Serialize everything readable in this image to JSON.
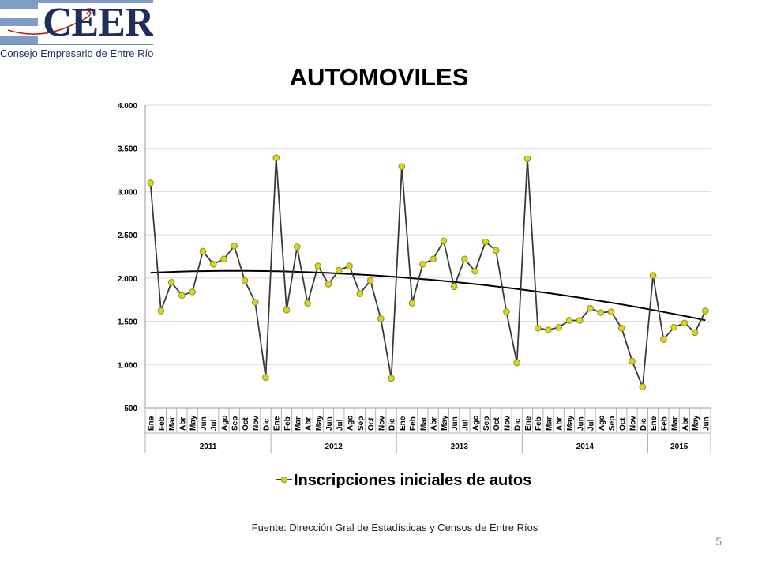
{
  "header": {
    "logo_text": "CEER",
    "logo_subtitle": "Consejo Empresario de Entre Ríos"
  },
  "slide": {
    "title": "AUTOMOVILES",
    "source": "Fuente: Dirección Gral de Estadísticas y Censos de Entre Ríos",
    "page_number": "5"
  },
  "colors": {
    "line": "#3a3a3a",
    "marker_fill": "#e2d21a",
    "marker_stroke": "#7a9a2a",
    "trend": "#000000",
    "grid": "#d9d9d9"
  },
  "chart_data": {
    "type": "line",
    "title": "AUTOMOVILES",
    "xlabel": "",
    "ylabel": "",
    "ylim": [
      500,
      4000
    ],
    "yticks": [
      500,
      1000,
      1500,
      2000,
      2500,
      3000,
      3500,
      4000
    ],
    "ytick_labels": [
      "500",
      "1.000",
      "1.500",
      "2.000",
      "2.500",
      "3.000",
      "3.500",
      "4.000"
    ],
    "grid": true,
    "legend_position": "bottom",
    "year_groups": [
      {
        "label": "2011",
        "count": 12
      },
      {
        "label": "2012",
        "count": 12
      },
      {
        "label": "2013",
        "count": 12
      },
      {
        "label": "2014",
        "count": 12
      },
      {
        "label": "2015",
        "count": 6
      }
    ],
    "categories": [
      "Ene",
      "Feb",
      "Mar",
      "Abr",
      "May",
      "Jun",
      "Jul",
      "Ago",
      "Sep",
      "Oct",
      "Nov",
      "Dic",
      "Ene",
      "Feb",
      "Mar",
      "Abr",
      "May",
      "Jun",
      "Jul",
      "Ago",
      "Sep",
      "Oct",
      "Nov",
      "Dic",
      "Ene",
      "Feb",
      "Mar",
      "Abr",
      "May",
      "Jun",
      "Jul",
      "Ago",
      "Sep",
      "Oct",
      "Nov",
      "Dic",
      "Ene",
      "Feb",
      "Mar",
      "Abr",
      "May",
      "Jun",
      "Jul",
      "Ago",
      "Sep",
      "Oct",
      "Nov",
      "Dic",
      "Ene",
      "Feb",
      "Mar",
      "Abr",
      "May",
      "Jun"
    ],
    "series": [
      {
        "name": "Inscripciones iniciales de autos",
        "values": [
          3100,
          1620,
          1950,
          1800,
          1840,
          2310,
          2160,
          2220,
          2370,
          1970,
          1720,
          850,
          3390,
          1630,
          2360,
          1710,
          2140,
          1930,
          2090,
          2140,
          1820,
          1970,
          1530,
          840,
          3290,
          1710,
          2160,
          2220,
          2430,
          1900,
          2220,
          2080,
          2420,
          2320,
          1610,
          1020,
          3380,
          1420,
          1400,
          1430,
          1510,
          1510,
          1650,
          1600,
          1610,
          1420,
          1040,
          740,
          2030,
          1290,
          1430,
          1480,
          1370,
          1620
        ]
      }
    ],
    "trendline": {
      "type": "polynomial",
      "values": [
        2060,
        2066,
        2071,
        2075,
        2078,
        2080,
        2082,
        2083,
        2083,
        2083,
        2082,
        2081,
        2079,
        2076,
        2072,
        2068,
        2064,
        2059,
        2053,
        2047,
        2040,
        2033,
        2025,
        2017,
        2008,
        1998,
        1988,
        1978,
        1967,
        1955,
        1943,
        1930,
        1917,
        1903,
        1889,
        1874,
        1858,
        1842,
        1826,
        1809,
        1791,
        1773,
        1754,
        1735,
        1715,
        1695,
        1674,
        1652,
        1630,
        1608,
        1585,
        1561,
        1537,
        1512
      ]
    }
  }
}
